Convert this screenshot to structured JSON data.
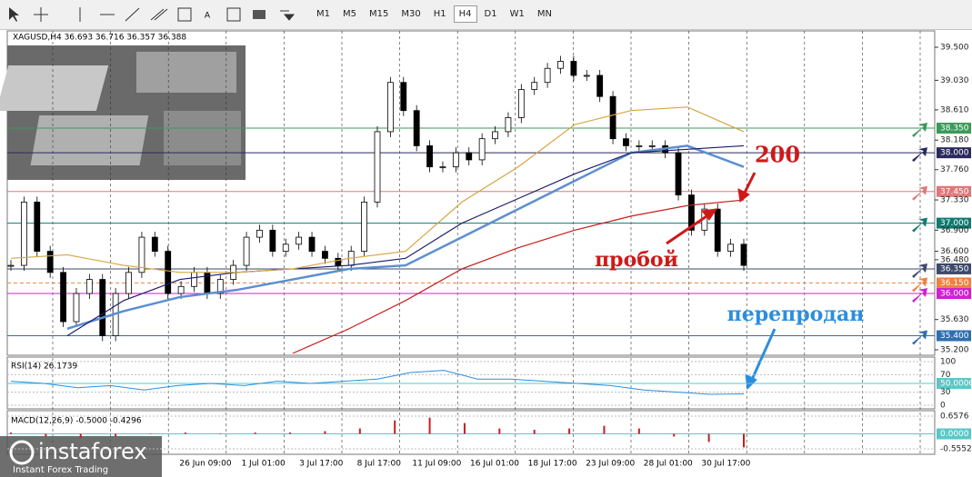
{
  "toolbar": {
    "buttons": [
      "M1",
      "M5",
      "M15",
      "M30",
      "H1",
      "H4",
      "D1",
      "W1",
      "MN"
    ]
  },
  "chart": {
    "header": "XAGUSD,H4  36.693 36.716 36.357 36.388",
    "price_labels": [
      {
        "value": 39.5,
        "label": "39.500"
      },
      {
        "value": 39.03,
        "label": "39.030"
      },
      {
        "value": 38.61,
        "label": "38.610"
      },
      {
        "value": 38.35,
        "label": "38.350",
        "box": "#3c9a5a"
      },
      {
        "value": 38.18,
        "label": "38.180"
      },
      {
        "value": 38.0,
        "label": "38.000",
        "box": "#2a2a5e"
      },
      {
        "value": 37.76,
        "label": "37.760"
      },
      {
        "value": 37.45,
        "label": "37.450",
        "box": "#e07878"
      },
      {
        "value": 37.33,
        "label": "37.330"
      },
      {
        "value": 37.0,
        "label": "37.000",
        "box": "#0e7b72"
      },
      {
        "value": 36.9,
        "label": "36.900"
      },
      {
        "value": 36.6,
        "label": "36.600"
      },
      {
        "value": 36.48,
        "label": "36.480"
      },
      {
        "value": 36.35,
        "label": "36.350",
        "box": "#3d4a6a"
      },
      {
        "value": 36.15,
        "label": "36.150",
        "box": "#f08040"
      },
      {
        "value": 36.0,
        "label": "36.000",
        "box": "#d020d0"
      },
      {
        "value": 35.63,
        "label": "35.630"
      },
      {
        "value": 35.4,
        "label": "35.400",
        "box": "#2f6fb0"
      },
      {
        "value": 35.2,
        "label": "35.200"
      }
    ],
    "ylim": [
      35.2,
      39.5
    ],
    "time_labels": [
      "26 Jun 09:00",
      "1 Jul 01:00",
      "3 Jul 17:00",
      "8 Jul 17:00",
      "11 Jul 09:00",
      "16 Jul 01:00",
      "18 Jul 17:00",
      "23 Jul 09:00",
      "28 Jul 01:00",
      "30 Jul 17:00"
    ],
    "closes": [
      36.4,
      37.3,
      36.6,
      36.3,
      35.6,
      36.0,
      36.2,
      35.4,
      36.0,
      36.3,
      36.8,
      36.6,
      36.0,
      36.1,
      36.3,
      36.0,
      36.2,
      36.4,
      36.8,
      36.9,
      36.6,
      36.7,
      36.8,
      36.6,
      36.5,
      36.4,
      36.6,
      37.3,
      38.3,
      39.0,
      38.6,
      38.1,
      37.8,
      37.8,
      38.0,
      37.9,
      38.2,
      38.3,
      38.5,
      38.9,
      39.0,
      39.2,
      39.3,
      39.1,
      39.1,
      38.8,
      38.2,
      38.1,
      38.1,
      38.1,
      38.0,
      37.4,
      36.9,
      37.2,
      36.6,
      36.7,
      36.4
    ],
    "moving_averages": [
      {
        "color": "#c81e1e",
        "values": [
          null,
          null,
          null,
          null,
          null,
          35.15,
          35.5,
          35.9,
          36.35,
          36.65,
          36.9,
          37.1,
          37.25,
          37.33
        ]
      },
      {
        "color": "#5b8fd0",
        "values": [
          null,
          35.5,
          35.75,
          35.95,
          36.05,
          36.2,
          36.35,
          36.4,
          36.8,
          37.2,
          37.6,
          38.0,
          38.1,
          37.8
        ]
      },
      {
        "color": "#1c1c6a",
        "values": [
          null,
          35.4,
          35.9,
          36.2,
          36.3,
          36.35,
          36.4,
          36.5,
          37.0,
          37.35,
          37.7,
          38.0,
          38.05,
          38.1
        ]
      },
      {
        "color": "#d9a441",
        "values": [
          36.5,
          36.55,
          36.4,
          36.3,
          36.3,
          36.35,
          36.5,
          36.6,
          37.3,
          37.8,
          38.4,
          38.6,
          38.65,
          38.3
        ]
      }
    ],
    "annotations": {
      "ma": "200",
      "breakout": "пробой",
      "oversold": "перепродан"
    },
    "rsi": {
      "label": "RSI(14) 26.1739",
      "ylim": [
        0,
        100
      ],
      "levels": [
        100,
        70,
        {
          "value": 50,
          "label": "50.0000"
        },
        30,
        0
      ],
      "values": [
        55,
        50,
        40,
        45,
        35,
        45,
        50,
        45,
        55,
        50,
        55,
        60,
        75,
        80,
        60,
        60,
        55,
        50,
        45,
        35,
        30,
        25,
        26
      ]
    },
    "macd": {
      "label": "MACD(12,26,9) -0.5000 -0.4296",
      "ylim": [
        -0.5552,
        0.6576
      ],
      "levels": [
        0.6576,
        {
          "value": 0,
          "label": "0.0000"
        },
        -0.5552
      ],
      "values": [
        0.05,
        -0.1,
        -0.15,
        -0.1,
        0,
        0.05,
        0,
        0.05,
        0.05,
        0.1,
        0.2,
        0.5,
        0.6,
        0.4,
        0.2,
        0.15,
        0.2,
        0.3,
        0.2,
        -0.1,
        -0.3,
        -0.5
      ]
    }
  },
  "logo": {
    "name": "instaforex",
    "tagline": "Instant Forex Trading"
  }
}
